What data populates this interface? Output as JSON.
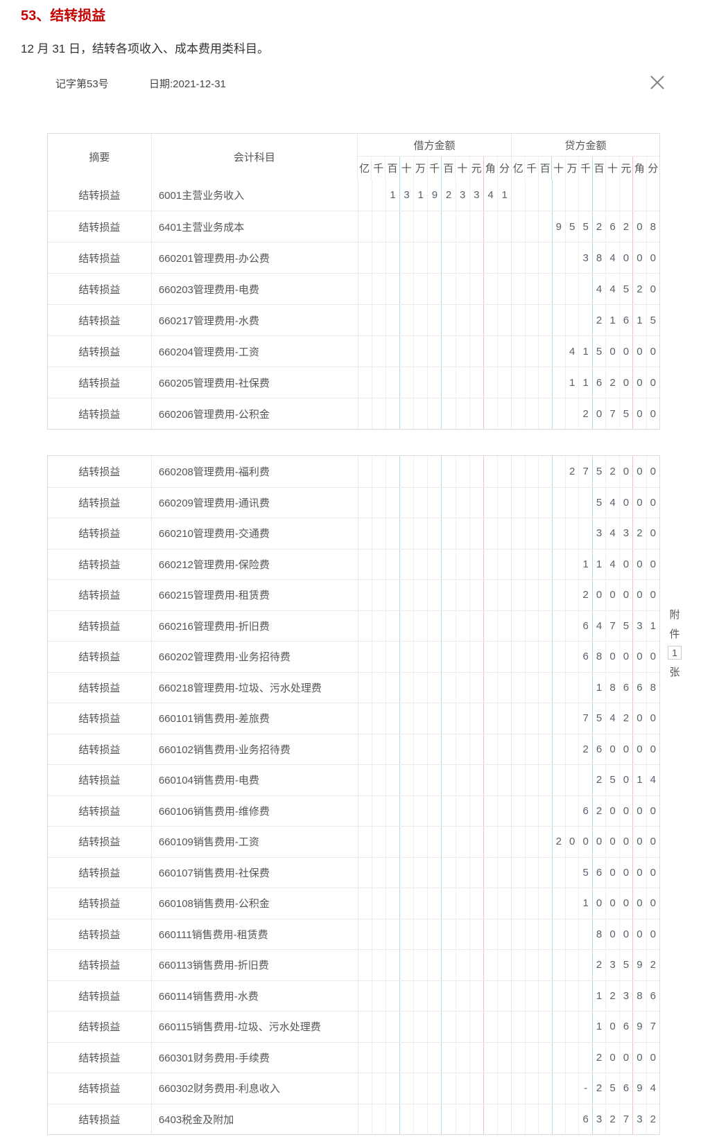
{
  "page": {
    "title": "53、结转损益",
    "subtitle": "12 月 31 日，结转各项收入、成本费用类科目。"
  },
  "voucher": {
    "number": "记字第53号",
    "date": "日期:2021-12-31",
    "attachment": {
      "label": "附件",
      "count": "1",
      "unit": "张"
    }
  },
  "table": {
    "summary_header": "摘要",
    "account_header": "会计科目",
    "debit_header": "借方金额",
    "credit_header": "贷方金额",
    "digit_labels": [
      "亿",
      "千",
      "百",
      "十",
      "万",
      "千",
      "百",
      "十",
      "元",
      "角",
      "分"
    ]
  },
  "colors": {
    "title_red": "#c30000",
    "separator_blue": "#b5d9ed",
    "separator_red": "#f3c1c1"
  },
  "section1_rows": [
    {
      "summary": "结转损益",
      "account": "6001主营业务收入",
      "debit": "  131923341",
      "credit": ""
    },
    {
      "summary": "结转损益",
      "account": "6401主营业务成本",
      "debit": "",
      "credit": "   95526208"
    },
    {
      "summary": "结转损益",
      "account": "660201管理费用-办公费",
      "debit": "",
      "credit": "     384000"
    },
    {
      "summary": "结转损益",
      "account": "660203管理费用-电费",
      "debit": "",
      "credit": "      44520"
    },
    {
      "summary": "结转损益",
      "account": "660217管理费用-水费",
      "debit": "",
      "credit": "      21615"
    },
    {
      "summary": "结转损益",
      "account": "660204管理费用-工资",
      "debit": "",
      "credit": "    4150000"
    },
    {
      "summary": "结转损益",
      "account": "660205管理费用-社保费",
      "debit": "",
      "credit": "    1162000"
    },
    {
      "summary": "结转损益",
      "account": "660206管理费用-公积金",
      "debit": "",
      "credit": "     207500"
    }
  ],
  "section2_rows": [
    {
      "summary": "结转损益",
      "account": "660208管理费用-福利费",
      "debit": "",
      "credit": "    2752000"
    },
    {
      "summary": "结转损益",
      "account": "660209管理费用-通讯费",
      "debit": "",
      "credit": "      54000"
    },
    {
      "summary": "结转损益",
      "account": "660210管理费用-交通费",
      "debit": "",
      "credit": "      34320"
    },
    {
      "summary": "结转损益",
      "account": "660212管理费用-保险费",
      "debit": "",
      "credit": "     114000"
    },
    {
      "summary": "结转损益",
      "account": "660215管理费用-租赁费",
      "debit": "",
      "credit": "     200000"
    },
    {
      "summary": "结转损益",
      "account": "660216管理费用-折旧费",
      "debit": "",
      "credit": "     647531"
    },
    {
      "summary": "结转损益",
      "account": "660202管理费用-业务招待费",
      "debit": "",
      "credit": "     680000"
    },
    {
      "summary": "结转损益",
      "account": "660218管理费用-垃圾、污水处理费",
      "debit": "",
      "credit": "      18668"
    },
    {
      "summary": "结转损益",
      "account": "660101销售费用-差旅费",
      "debit": "",
      "credit": "     754200"
    },
    {
      "summary": "结转损益",
      "account": "660102销售费用-业务招待费",
      "debit": "",
      "credit": "     260000"
    },
    {
      "summary": "结转损益",
      "account": "660104销售费用-电费",
      "debit": "",
      "credit": "      25014"
    },
    {
      "summary": "结转损益",
      "account": "660106销售费用-维修费",
      "debit": "",
      "credit": "     620000"
    },
    {
      "summary": "结转损益",
      "account": "660109销售费用-工资",
      "debit": "",
      "credit": "   20000000"
    },
    {
      "summary": "结转损益",
      "account": "660107销售费用-社保费",
      "debit": "",
      "credit": "     560000"
    },
    {
      "summary": "结转损益",
      "account": "660108销售费用-公积金",
      "debit": "",
      "credit": "     100000"
    },
    {
      "summary": "结转损益",
      "account": "660111销售费用-租赁费",
      "debit": "",
      "credit": "      80000"
    },
    {
      "summary": "结转损益",
      "account": "660113销售费用-折旧费",
      "debit": "",
      "credit": "      23592"
    },
    {
      "summary": "结转损益",
      "account": "660114销售费用-水费",
      "debit": "",
      "credit": "      12386"
    },
    {
      "summary": "结转损益",
      "account": "660115销售费用-垃圾、污水处理费",
      "debit": "",
      "credit": "      10697"
    },
    {
      "summary": "结转损益",
      "account": "660301财务费用-手续费",
      "debit": "",
      "credit": "      20000"
    },
    {
      "summary": "结转损益",
      "account": "660302财务费用-利息收入",
      "debit": "",
      "credit": "     -25694"
    },
    {
      "summary": "结转损益",
      "account": "6403税金及附加",
      "debit": "",
      "credit": "     632732"
    }
  ]
}
